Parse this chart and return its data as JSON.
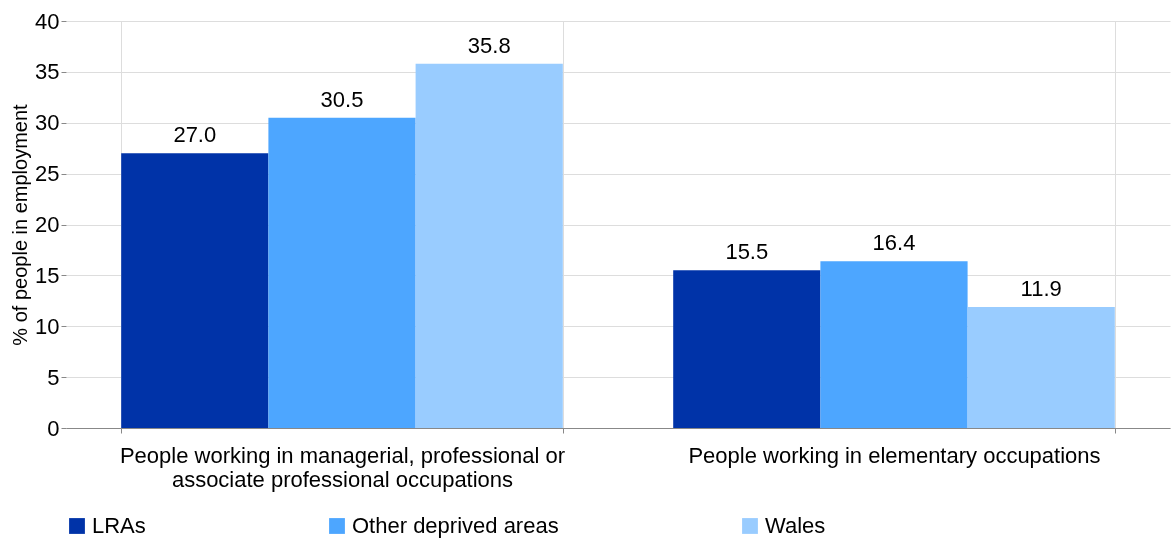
{
  "chart_data": {
    "type": "bar",
    "ylabel": "% of people in employment",
    "categories": [
      "People working in managerial, professional or associate professional occupations",
      "People working in elementary occupations"
    ],
    "series": [
      {
        "name": "LRAs",
        "color": "#0033a8",
        "values": [
          27.0,
          15.5
        ],
        "value_labels": [
          "27.0",
          "15.5"
        ]
      },
      {
        "name": "Other deprived areas",
        "color": "#4da6ff",
        "values": [
          30.5,
          16.4
        ],
        "value_labels": [
          "30.5",
          "16.4"
        ]
      },
      {
        "name": "Wales",
        "color": "#99ccff",
        "values": [
          35.8,
          11.9
        ],
        "value_labels": [
          "35.8",
          "11.9"
        ]
      }
    ],
    "ylim": [
      0,
      40
    ],
    "yticks": [
      0,
      5,
      10,
      15,
      20,
      25,
      30,
      35,
      40
    ],
    "grid": true,
    "legend": "bottom"
  }
}
